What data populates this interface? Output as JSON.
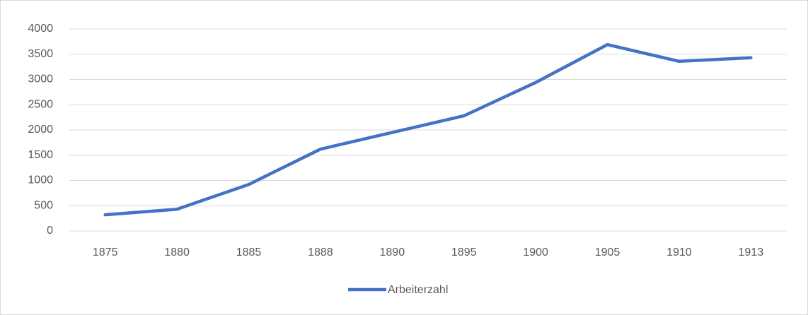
{
  "chart_data": {
    "type": "line",
    "categories": [
      "1875",
      "1880",
      "1885",
      "1888",
      "1890",
      "1895",
      "1900",
      "1905",
      "1910",
      "1913"
    ],
    "series": [
      {
        "name": "Arbeiterzahl",
        "color": "#4472c4",
        "values": [
          320,
          430,
          920,
          1620,
          1950,
          2280,
          2940,
          3690,
          3360,
          3430
        ]
      }
    ],
    "ylim": [
      0,
      4000
    ],
    "yticks": [
      0,
      500,
      1000,
      1500,
      2000,
      2500,
      3000,
      3500,
      4000
    ],
    "grid": true,
    "legend": "bottom"
  }
}
